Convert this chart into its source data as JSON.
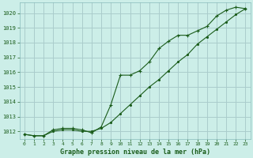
{
  "title": "Graphe pression niveau de la mer (hPa)",
  "background_color": "#cceee8",
  "plot_bg_color": "#cceee8",
  "grid_color": "#aacccc",
  "line_color": "#1a5c1a",
  "marker_color": "#1a5c1a",
  "xlim": [
    -0.5,
    23.5
  ],
  "ylim": [
    1011.5,
    1020.7
  ],
  "yticks": [
    1012,
    1013,
    1014,
    1015,
    1016,
    1017,
    1018,
    1019,
    1020
  ],
  "xticks": [
    0,
    1,
    2,
    3,
    4,
    5,
    6,
    7,
    8,
    9,
    10,
    11,
    12,
    13,
    14,
    15,
    16,
    17,
    18,
    19,
    20,
    21,
    22,
    23
  ],
  "series1_x": [
    0,
    1,
    2,
    3,
    4,
    5,
    6,
    7,
    8,
    9,
    10,
    11,
    12,
    13,
    14,
    15,
    16,
    17,
    18,
    19,
    20,
    21,
    22,
    23
  ],
  "series1_y": [
    1011.8,
    1011.7,
    1011.7,
    1012.0,
    1012.1,
    1012.1,
    1012.0,
    1012.0,
    1012.2,
    1012.6,
    1013.2,
    1013.8,
    1014.4,
    1015.0,
    1015.5,
    1016.1,
    1016.7,
    1017.2,
    1017.9,
    1018.4,
    1018.9,
    1019.4,
    1019.9,
    1020.3
  ],
  "series2_x": [
    0,
    1,
    2,
    3,
    4,
    5,
    6,
    7,
    8,
    9,
    10,
    11,
    12,
    13,
    14,
    15,
    16,
    17,
    18,
    19,
    20,
    21,
    22,
    23
  ],
  "series2_y": [
    1011.8,
    1011.7,
    1011.7,
    1012.1,
    1012.2,
    1012.2,
    1012.1,
    1011.9,
    1012.3,
    1013.8,
    1015.8,
    1015.8,
    1016.1,
    1016.7,
    1017.6,
    1018.1,
    1018.5,
    1018.5,
    1018.8,
    1019.1,
    1019.8,
    1020.2,
    1020.4,
    1020.3
  ]
}
